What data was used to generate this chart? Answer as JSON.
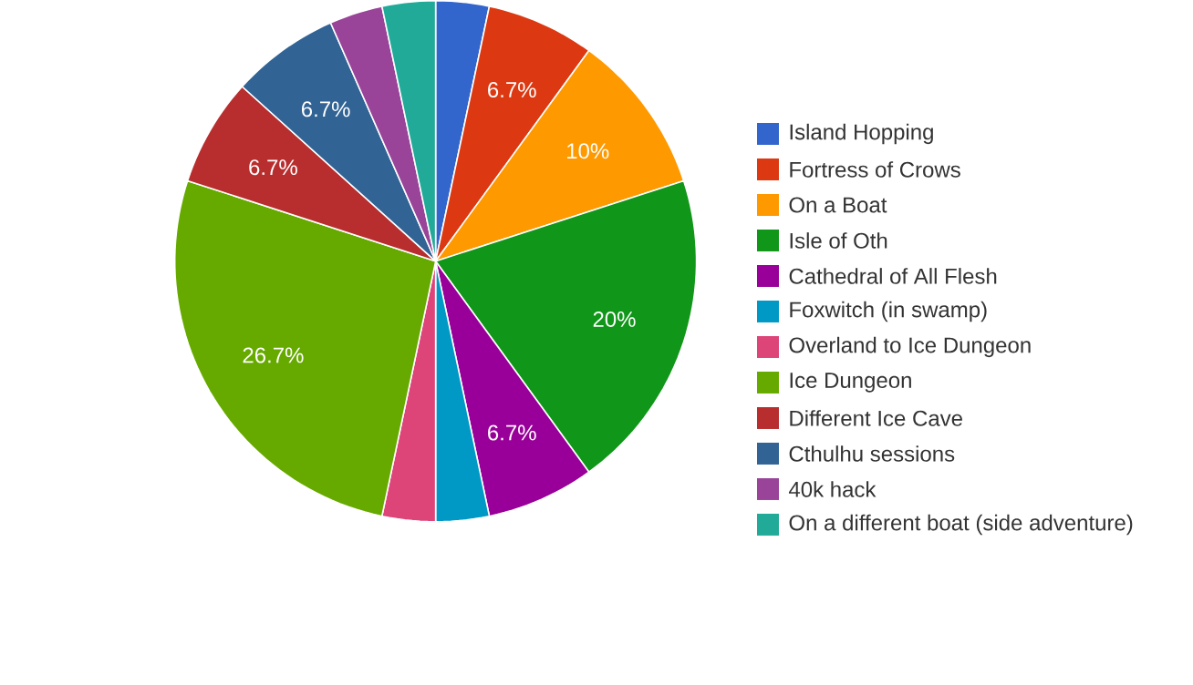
{
  "chart_data": {
    "type": "pie",
    "categories": [
      "Island Hopping",
      "Fortress of Crows",
      "On a Boat",
      "Isle of Oth",
      "Cathedral of All Flesh",
      "Foxwitch (in swamp)",
      "Overland to Ice Dungeon",
      "Ice Dungeon",
      "Different Ice Cave",
      "Cthulhu sessions",
      "40k hack",
      "On a different boat (side adventure)"
    ],
    "values": [
      3.3,
      6.7,
      10,
      20,
      6.7,
      3.3,
      3.3,
      26.7,
      6.7,
      6.7,
      3.3,
      3.3
    ],
    "colors": [
      "#3366cc",
      "#dc3912",
      "#ff9900",
      "#109618",
      "#990099",
      "#0099c6",
      "#dd4477",
      "#66aa00",
      "#b82e2e",
      "#316395",
      "#994499",
      "#22aa99"
    ],
    "value_labels": [
      null,
      "6.7%",
      "10%",
      "20%",
      "6.7%",
      null,
      null,
      "26.7%",
      "6.7%",
      "6.7%",
      null,
      null
    ],
    "legend": "right"
  }
}
